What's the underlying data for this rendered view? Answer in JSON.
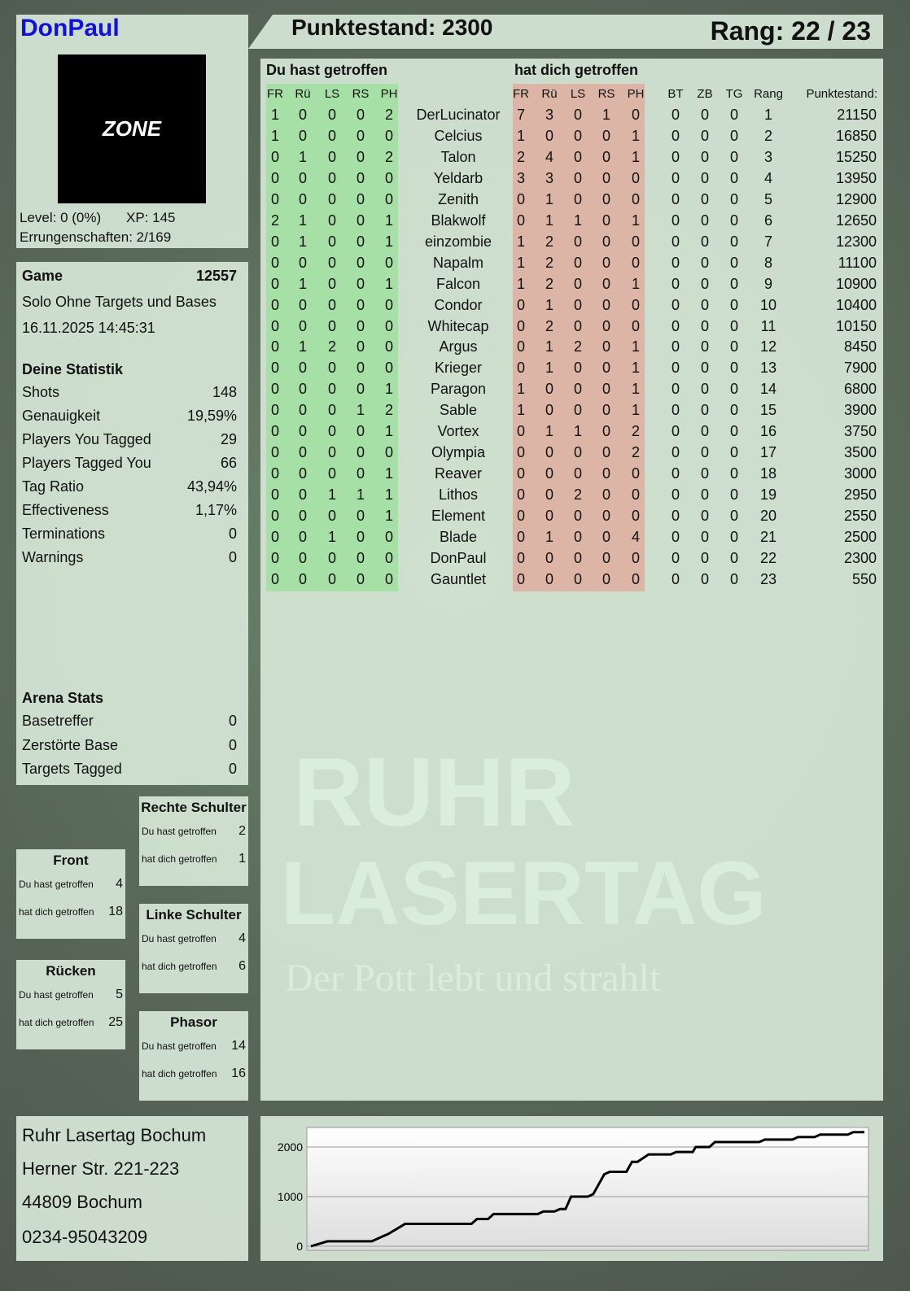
{
  "player": {
    "name": "DonPaul",
    "level": "Level: 0 (0%)",
    "xp": "XP: 145",
    "achievements": "Errungenschaften: 2/169",
    "logo_text": "LASER TAG ZONE"
  },
  "header": {
    "score": "Punktestand: 2300",
    "rank": "Rang: 22 / 23"
  },
  "game": {
    "label": "Game",
    "id": "12557",
    "mode": "Solo Ohne Targets und Bases",
    "datetime": "16.11.2025 14:45:31"
  },
  "stats": {
    "title": "Deine Statistik",
    "rows": [
      {
        "label": "Shots",
        "value": "148"
      },
      {
        "label": "Genauigkeit",
        "value": "19,59%"
      },
      {
        "label": "Players You Tagged",
        "value": "29"
      },
      {
        "label": "Players Tagged You",
        "value": "66"
      },
      {
        "label": "Tag Ratio",
        "value": "43,94%"
      },
      {
        "label": "Effectiveness",
        "value": "1,17%"
      },
      {
        "label": "Terminations",
        "value": "0"
      },
      {
        "label": "Warnings",
        "value": "0"
      }
    ]
  },
  "arena": {
    "title": "Arena Stats",
    "rows": [
      {
        "label": "Basetreffer",
        "value": "0"
      },
      {
        "label": "Zerstörte Base",
        "value": "0"
      },
      {
        "label": "Targets Tagged",
        "value": "0"
      }
    ]
  },
  "hitzones": [
    {
      "title": "Rechte Schulter",
      "you_label": "Du hast getroffen",
      "you": "2",
      "them_label": "hat dich getroffen",
      "them": "1"
    },
    {
      "title": "Front",
      "you_label": "Du hast getroffen",
      "you": "4",
      "them_label": "hat dich getroffen",
      "them": "18"
    },
    {
      "title": "Linke Schulter",
      "you_label": "Du hast getroffen",
      "you": "4",
      "them_label": "hat dich getroffen",
      "them": "6"
    },
    {
      "title": "Rücken",
      "you_label": "Du hast getroffen",
      "you": "5",
      "them_label": "hat dich getroffen",
      "them": "25"
    },
    {
      "title": "Phasor",
      "you_label": "Du hast getroffen",
      "you": "14",
      "them_label": "hat dich getroffen",
      "them": "16"
    }
  ],
  "table": {
    "you_hit_title": "Du hast getroffen",
    "hit_you_title": "hat dich getroffen",
    "zone_headers": [
      "FR",
      "Rü",
      "LS",
      "RS",
      "PH"
    ],
    "extra_headers": [
      "BT",
      "ZB",
      "TG",
      "Rang",
      "Punktestand:"
    ],
    "colors": {
      "you_hit": "#9fe09f",
      "hit_you": "#dfaea0"
    },
    "rows": [
      {
        "name": "DerLucinator",
        "you": [
          1,
          0,
          0,
          0,
          2
        ],
        "them": [
          7,
          3,
          0,
          1,
          0
        ],
        "bt": 0,
        "zb": 0,
        "tg": 0,
        "rank": 1,
        "score": 21150
      },
      {
        "name": "Celcius",
        "you": [
          1,
          0,
          0,
          0,
          0
        ],
        "them": [
          1,
          0,
          0,
          0,
          1
        ],
        "bt": 0,
        "zb": 0,
        "tg": 0,
        "rank": 2,
        "score": 16850
      },
      {
        "name": "Talon",
        "you": [
          0,
          1,
          0,
          0,
          2
        ],
        "them": [
          2,
          4,
          0,
          0,
          1
        ],
        "bt": 0,
        "zb": 0,
        "tg": 0,
        "rank": 3,
        "score": 15250
      },
      {
        "name": "Yeldarb",
        "you": [
          0,
          0,
          0,
          0,
          0
        ],
        "them": [
          3,
          3,
          0,
          0,
          0
        ],
        "bt": 0,
        "zb": 0,
        "tg": 0,
        "rank": 4,
        "score": 13950
      },
      {
        "name": "Zenith",
        "you": [
          0,
          0,
          0,
          0,
          0
        ],
        "them": [
          0,
          1,
          0,
          0,
          0
        ],
        "bt": 0,
        "zb": 0,
        "tg": 0,
        "rank": 5,
        "score": 12900
      },
      {
        "name": "Blakwolf",
        "you": [
          2,
          1,
          0,
          0,
          1
        ],
        "them": [
          0,
          1,
          1,
          0,
          1
        ],
        "bt": 0,
        "zb": 0,
        "tg": 0,
        "rank": 6,
        "score": 12650
      },
      {
        "name": "einzombie",
        "you": [
          0,
          1,
          0,
          0,
          1
        ],
        "them": [
          1,
          2,
          0,
          0,
          0
        ],
        "bt": 0,
        "zb": 0,
        "tg": 0,
        "rank": 7,
        "score": 12300
      },
      {
        "name": "Napalm",
        "you": [
          0,
          0,
          0,
          0,
          0
        ],
        "them": [
          1,
          2,
          0,
          0,
          0
        ],
        "bt": 0,
        "zb": 0,
        "tg": 0,
        "rank": 8,
        "score": 11100
      },
      {
        "name": "Falcon",
        "you": [
          0,
          1,
          0,
          0,
          1
        ],
        "them": [
          1,
          2,
          0,
          0,
          1
        ],
        "bt": 0,
        "zb": 0,
        "tg": 0,
        "rank": 9,
        "score": 10900
      },
      {
        "name": "Condor",
        "you": [
          0,
          0,
          0,
          0,
          0
        ],
        "them": [
          0,
          1,
          0,
          0,
          0
        ],
        "bt": 0,
        "zb": 0,
        "tg": 0,
        "rank": 10,
        "score": 10400
      },
      {
        "name": "Whitecap",
        "you": [
          0,
          0,
          0,
          0,
          0
        ],
        "them": [
          0,
          2,
          0,
          0,
          0
        ],
        "bt": 0,
        "zb": 0,
        "tg": 0,
        "rank": 11,
        "score": 10150
      },
      {
        "name": "Argus",
        "you": [
          0,
          1,
          2,
          0,
          0
        ],
        "them": [
          0,
          1,
          2,
          0,
          1
        ],
        "bt": 0,
        "zb": 0,
        "tg": 0,
        "rank": 12,
        "score": 8450
      },
      {
        "name": "Krieger",
        "you": [
          0,
          0,
          0,
          0,
          0
        ],
        "them": [
          0,
          1,
          0,
          0,
          1
        ],
        "bt": 0,
        "zb": 0,
        "tg": 0,
        "rank": 13,
        "score": 7900
      },
      {
        "name": "Paragon",
        "you": [
          0,
          0,
          0,
          0,
          1
        ],
        "them": [
          1,
          0,
          0,
          0,
          1
        ],
        "bt": 0,
        "zb": 0,
        "tg": 0,
        "rank": 14,
        "score": 6800
      },
      {
        "name": "Sable",
        "you": [
          0,
          0,
          0,
          1,
          2
        ],
        "them": [
          1,
          0,
          0,
          0,
          1
        ],
        "bt": 0,
        "zb": 0,
        "tg": 0,
        "rank": 15,
        "score": 3900
      },
      {
        "name": "Vortex",
        "you": [
          0,
          0,
          0,
          0,
          1
        ],
        "them": [
          0,
          1,
          1,
          0,
          2
        ],
        "bt": 0,
        "zb": 0,
        "tg": 0,
        "rank": 16,
        "score": 3750
      },
      {
        "name": "Olympia",
        "you": [
          0,
          0,
          0,
          0,
          0
        ],
        "them": [
          0,
          0,
          0,
          0,
          2
        ],
        "bt": 0,
        "zb": 0,
        "tg": 0,
        "rank": 17,
        "score": 3500
      },
      {
        "name": "Reaver",
        "you": [
          0,
          0,
          0,
          0,
          1
        ],
        "them": [
          0,
          0,
          0,
          0,
          0
        ],
        "bt": 0,
        "zb": 0,
        "tg": 0,
        "rank": 18,
        "score": 3000
      },
      {
        "name": "Lithos",
        "you": [
          0,
          0,
          1,
          1,
          1
        ],
        "them": [
          0,
          0,
          2,
          0,
          0
        ],
        "bt": 0,
        "zb": 0,
        "tg": 0,
        "rank": 19,
        "score": 2950
      },
      {
        "name": "Element",
        "you": [
          0,
          0,
          0,
          0,
          1
        ],
        "them": [
          0,
          0,
          0,
          0,
          0
        ],
        "bt": 0,
        "zb": 0,
        "tg": 0,
        "rank": 20,
        "score": 2550
      },
      {
        "name": "Blade",
        "you": [
          0,
          0,
          1,
          0,
          0
        ],
        "them": [
          0,
          1,
          0,
          0,
          4
        ],
        "bt": 0,
        "zb": 0,
        "tg": 0,
        "rank": 21,
        "score": 2500
      },
      {
        "name": "DonPaul",
        "you": [
          0,
          0,
          0,
          0,
          0
        ],
        "them": [
          0,
          0,
          0,
          0,
          0
        ],
        "bt": 0,
        "zb": 0,
        "tg": 0,
        "rank": 22,
        "score": 2300
      },
      {
        "name": "Gauntlet",
        "you": [
          0,
          0,
          0,
          0,
          0
        ],
        "them": [
          0,
          0,
          0,
          0,
          0
        ],
        "bt": 0,
        "zb": 0,
        "tg": 0,
        "rank": 23,
        "score": 550
      }
    ]
  },
  "address": {
    "line1": "Ruhr Lasertag Bochum",
    "line2": "Herner Str. 221-223",
    "line3": "44809 Bochum",
    "phone": "0234-95043209"
  },
  "watermark": {
    "line1": "RUHR",
    "line2": "LASERTAG",
    "slogan": "Der Pott lebt und strahlt"
  },
  "chart_data": {
    "type": "line",
    "title": "",
    "xlabel": "",
    "ylabel": "",
    "ylim": [
      0,
      2400
    ],
    "yticks": [
      0,
      1000,
      2000
    ],
    "grid": true,
    "points": [
      [
        0,
        0
      ],
      [
        3,
        100
      ],
      [
        11,
        100
      ],
      [
        13,
        200
      ],
      [
        14,
        250
      ],
      [
        17,
        450
      ],
      [
        29,
        450
      ],
      [
        30,
        550
      ],
      [
        32,
        550
      ],
      [
        33,
        650
      ],
      [
        41,
        650
      ],
      [
        42,
        700
      ],
      [
        44,
        700
      ],
      [
        45,
        750
      ],
      [
        46,
        750
      ],
      [
        47,
        1000
      ],
      [
        50,
        1000
      ],
      [
        51,
        1050
      ],
      [
        53,
        1450
      ],
      [
        54,
        1500
      ],
      [
        57,
        1500
      ],
      [
        58,
        1700
      ],
      [
        59,
        1700
      ],
      [
        61,
        1850
      ],
      [
        65,
        1850
      ],
      [
        66,
        1900
      ],
      [
        69,
        1900
      ],
      [
        69.5,
        2000
      ],
      [
        72,
        2000
      ],
      [
        73,
        2100
      ],
      [
        81,
        2100
      ],
      [
        82,
        2150
      ],
      [
        87,
        2150
      ],
      [
        88,
        2200
      ],
      [
        91,
        2200
      ],
      [
        92,
        2250
      ],
      [
        97,
        2250
      ],
      [
        98,
        2300
      ],
      [
        100,
        2300
      ]
    ]
  }
}
